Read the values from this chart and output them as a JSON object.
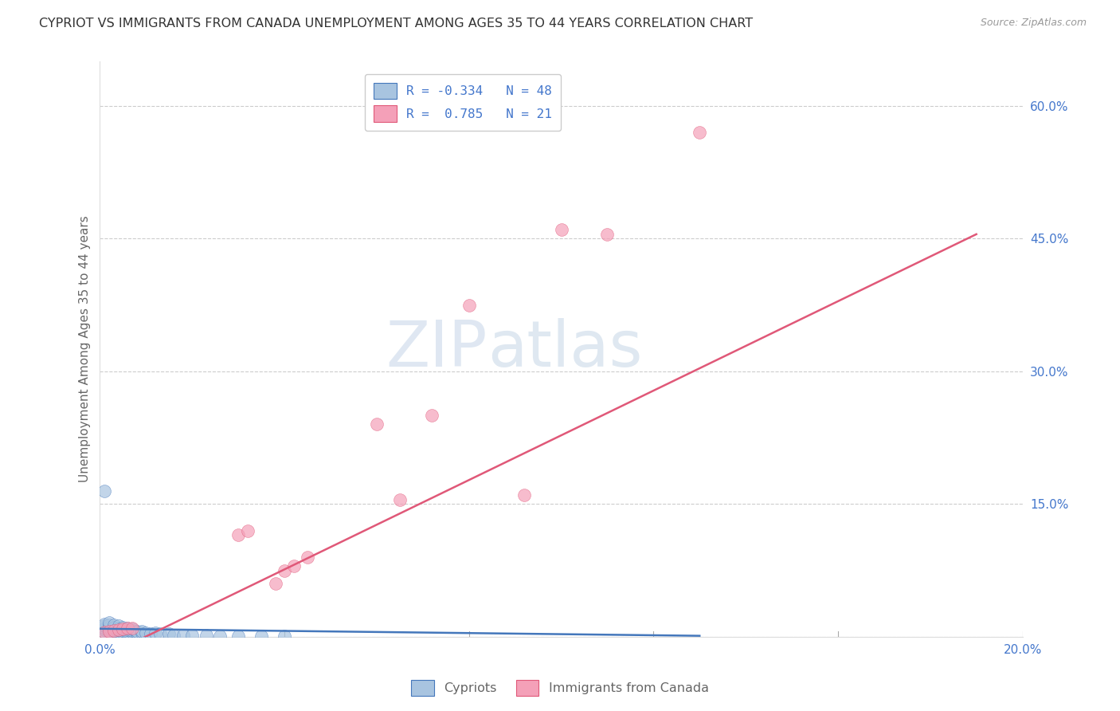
{
  "title": "CYPRIOT VS IMMIGRANTS FROM CANADA UNEMPLOYMENT AMONG AGES 35 TO 44 YEARS CORRELATION CHART",
  "source": "Source: ZipAtlas.com",
  "ylabel": "Unemployment Among Ages 35 to 44 years",
  "xlabel": "",
  "watermark_zip": "ZIP",
  "watermark_atlas": "atlas",
  "legend_labels": [
    "Cypriots",
    "Immigrants from Canada"
  ],
  "r_cypriot": -0.334,
  "n_cypriot": 48,
  "r_canada": 0.785,
  "n_canada": 21,
  "cypriot_color": "#a8c4e0",
  "canada_color": "#f4a0b8",
  "trendline_cypriot_color": "#4477bb",
  "trendline_canada_color": "#e05878",
  "xlim": [
    0.0,
    0.2
  ],
  "ylim": [
    0.0,
    0.65
  ],
  "yticks": [
    0.0,
    0.15,
    0.3,
    0.45,
    0.6
  ],
  "ytick_labels": [
    "",
    "15.0%",
    "30.0%",
    "45.0%",
    "60.0%"
  ],
  "xticks": [
    0.0,
    0.04,
    0.08,
    0.12,
    0.16,
    0.2
  ],
  "xtick_labels": [
    "0.0%",
    "",
    "",
    "",
    "",
    "20.0%"
  ],
  "cypriot_x": [
    0.001,
    0.001,
    0.001,
    0.001,
    0.001,
    0.002,
    0.002,
    0.002,
    0.002,
    0.002,
    0.003,
    0.003,
    0.003,
    0.003,
    0.003,
    0.004,
    0.004,
    0.004,
    0.004,
    0.005,
    0.005,
    0.005,
    0.005,
    0.006,
    0.006,
    0.006,
    0.006,
    0.007,
    0.007,
    0.007,
    0.008,
    0.008,
    0.009,
    0.009,
    0.01,
    0.011,
    0.012,
    0.013,
    0.015,
    0.016,
    0.018,
    0.02,
    0.023,
    0.026,
    0.03,
    0.035,
    0.04,
    0.001
  ],
  "cypriot_y": [
    0.005,
    0.008,
    0.01,
    0.012,
    0.014,
    0.006,
    0.009,
    0.011,
    0.013,
    0.016,
    0.005,
    0.007,
    0.009,
    0.011,
    0.013,
    0.006,
    0.008,
    0.01,
    0.012,
    0.005,
    0.007,
    0.009,
    0.011,
    0.004,
    0.006,
    0.008,
    0.01,
    0.005,
    0.007,
    0.009,
    0.004,
    0.006,
    0.004,
    0.006,
    0.004,
    0.003,
    0.004,
    0.003,
    0.003,
    0.002,
    0.002,
    0.002,
    0.002,
    0.001,
    0.001,
    0.001,
    0.001,
    0.165
  ],
  "canada_x": [
    0.001,
    0.002,
    0.003,
    0.004,
    0.005,
    0.006,
    0.007,
    0.03,
    0.032,
    0.038,
    0.04,
    0.042,
    0.045,
    0.06,
    0.065,
    0.072,
    0.08,
    0.092,
    0.1,
    0.11,
    0.13
  ],
  "canada_y": [
    0.005,
    0.006,
    0.007,
    0.008,
    0.009,
    0.01,
    0.01,
    0.115,
    0.12,
    0.06,
    0.075,
    0.08,
    0.09,
    0.24,
    0.155,
    0.25,
    0.375,
    0.16,
    0.46,
    0.455,
    0.57
  ],
  "background_color": "#ffffff",
  "grid_color": "#cccccc",
  "title_color": "#333333",
  "axis_label_color": "#666666",
  "tick_color": "#4477cc",
  "title_fontsize": 11.5,
  "axis_label_fontsize": 11,
  "tick_fontsize": 11
}
